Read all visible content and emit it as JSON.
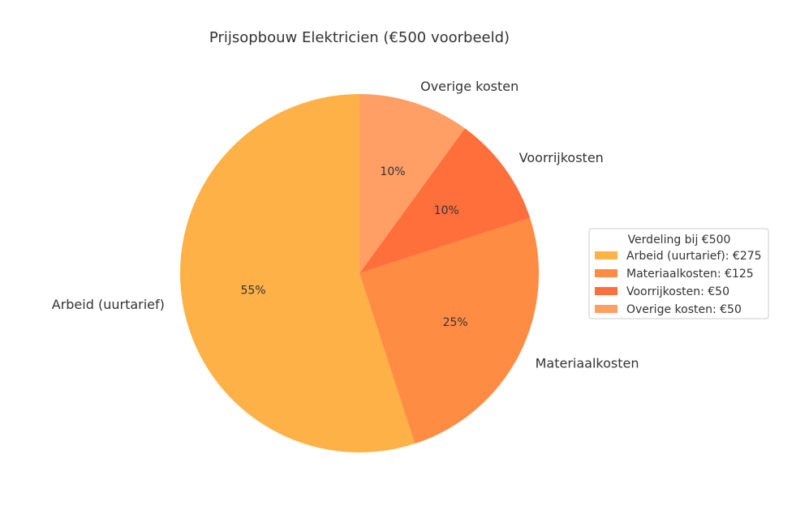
{
  "chart_data": {
    "type": "pie",
    "title": "Prijsopbouw Elektricien (€500 voorbeeld)",
    "slices": [
      {
        "label": "Arbeid (uurtarief)",
        "value": 275,
        "percent_label": "55%",
        "color": "#FDB147",
        "legend": "Arbeid (uurtarief): €275"
      },
      {
        "label": "Materiaalkosten",
        "value": 125,
        "percent_label": "25%",
        "color": "#FF8C42",
        "legend": "Materiaalkosten: €125"
      },
      {
        "label": "Voorrijkosten",
        "value": 50,
        "percent_label": "10%",
        "color": "#FF6F3C",
        "legend": "Voorrijkosten: €50"
      },
      {
        "label": "Overige kosten",
        "value": 50,
        "percent_label": "10%",
        "color": "#FF9F66",
        "legend": "Overige kosten: €50"
      }
    ],
    "start_angle_deg": 90,
    "direction": "counterclockwise",
    "legend": {
      "title": "Verdeling bij €500",
      "placement": "right"
    }
  }
}
